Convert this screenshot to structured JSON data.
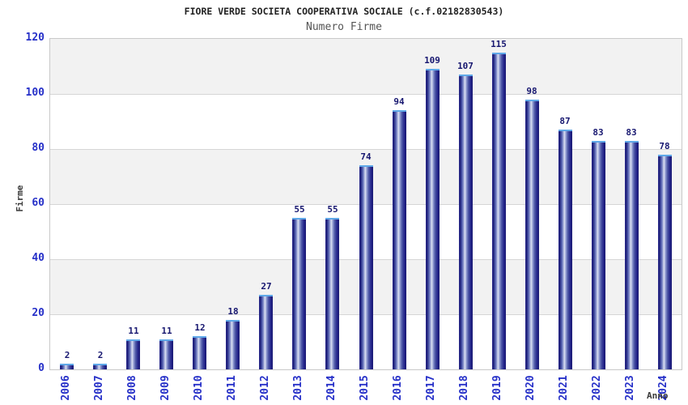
{
  "header": {
    "title": "FIORE VERDE SOCIETA COOPERATIVA SOCIALE (c.f.02182830543)",
    "subtitle": "Numero Firme"
  },
  "chart_data": {
    "type": "bar",
    "title": "Numero Firme",
    "categories": [
      "2006",
      "2007",
      "2008",
      "2009",
      "2010",
      "2011",
      "2012",
      "2013",
      "2014",
      "2015",
      "2016",
      "2017",
      "2018",
      "2019",
      "2020",
      "2021",
      "2022",
      "2023",
      "2024"
    ],
    "values": [
      2,
      2,
      11,
      11,
      12,
      18,
      27,
      55,
      55,
      74,
      94,
      109,
      107,
      115,
      98,
      87,
      83,
      83,
      78
    ],
    "xlabel": "Anno",
    "ylabel": "Firme",
    "ylim": [
      0,
      120
    ],
    "yticks": [
      0,
      20,
      40,
      60,
      80,
      100,
      120
    ],
    "ytick_interval": 20,
    "grid": true,
    "legend": "none",
    "bands": "alternating horizontal gray/white every 20 units",
    "colors": {
      "bar_dark": "#1a1a72",
      "bar_light": "#dde1f2",
      "bar_cap": "#5fa8e8",
      "axis_tick_label": "#2630c8",
      "value_label": "#171770",
      "band_gray": "#f2f2f2",
      "gridline": "#d6d6d6",
      "plot_border": "#c9c9c9",
      "title": "#222222",
      "subtitle": "#555555",
      "axis_title": "#3a3a3a"
    }
  }
}
